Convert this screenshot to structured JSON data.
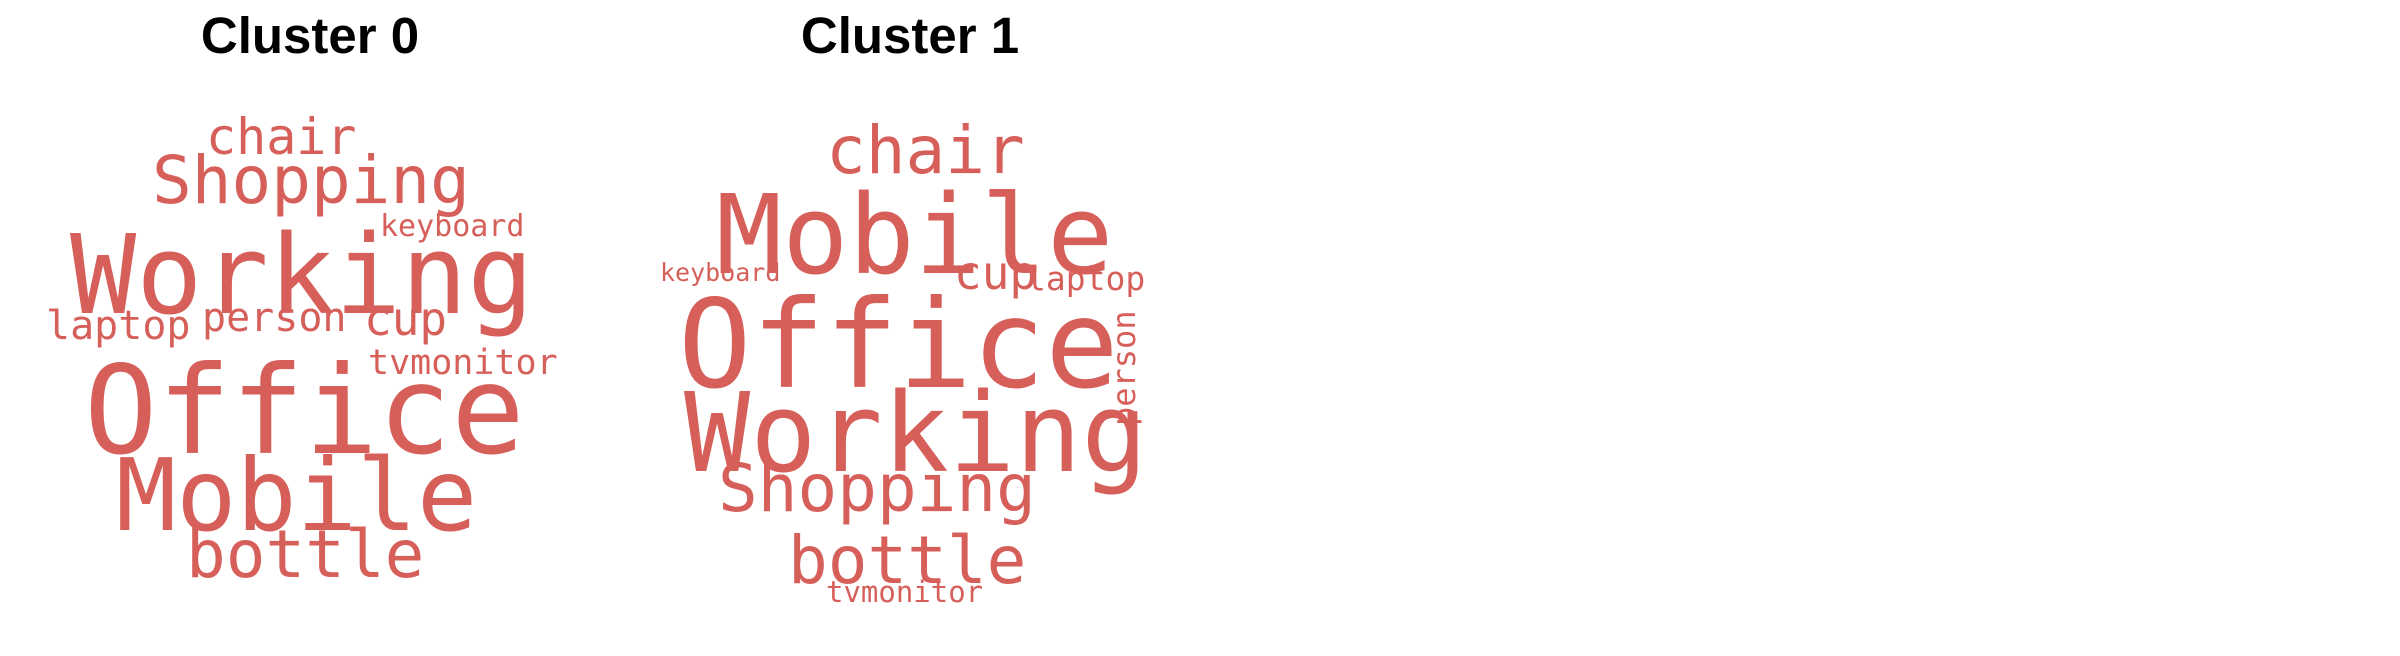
{
  "word_color": "#d75f5a",
  "clusters": [
    {
      "title": "Cluster 0",
      "words": {
        "chair": "chair",
        "shopping": "Shopping",
        "keyboard": "keyboard",
        "working": "Working",
        "laptop": "laptop",
        "person": "person",
        "cup": "cup",
        "tvmonitor": "tvmonitor",
        "office": "Office",
        "mobile": "Mobile",
        "bottle": "bottle"
      }
    },
    {
      "title": "Cluster 1",
      "words": {
        "chair": "chair",
        "mobile": "Mobile",
        "keyboard": "keyboard",
        "cup": "cup",
        "laptop": "laptop",
        "office": "Office",
        "person": "person",
        "working": "Working",
        "shopping": "Shopping",
        "bottle": "bottle",
        "tvmonitor": "tvmonitor"
      }
    }
  ]
}
